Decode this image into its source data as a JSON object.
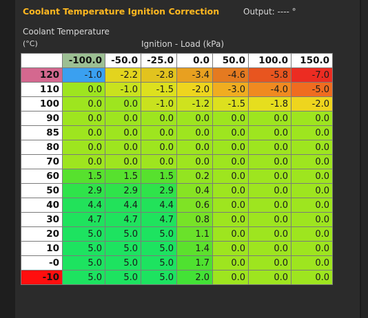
{
  "title": "Coolant Temperature Ignition Correction",
  "output_label": "Output: ---- °",
  "y_axis_label": "Coolant Temperature",
  "y_axis_unit": "(°C)",
  "x_axis_label": "Ignition - Load (kPa)",
  "columns": [
    "-100.0",
    "-50.0",
    "-25.0",
    "0.0",
    "50.0",
    "100.0",
    "150.0"
  ],
  "rows": [
    {
      "label": "120",
      "values": [
        "-1.0",
        "-2.2",
        "-2.8",
        "-3.4",
        "-4.6",
        "-5.8",
        "-7.0"
      ],
      "colors": [
        "#3aa0f0",
        "#e3d41e",
        "#e2c31e",
        "#e8a020",
        "#e57a20",
        "#e8551f",
        "#ec2c22"
      ]
    },
    {
      "label": "110",
      "values": [
        "0.0",
        "-1.0",
        "-1.5",
        "-2.0",
        "-3.0",
        "-4.0",
        "-5.0"
      ],
      "colors": [
        "#9ee51f",
        "#c9e21e",
        "#dde01e",
        "#eed51e",
        "#f0ad20",
        "#f08a20",
        "#ef6c20"
      ]
    },
    {
      "label": "100",
      "values": [
        "0.0",
        "0.0",
        "-1.0",
        "-1.2",
        "-1.5",
        "-1.8",
        "-2.0"
      ],
      "colors": [
        "#9ee51f",
        "#9ee51f",
        "#c9e21e",
        "#cfe21e",
        "#dde01e",
        "#e6de1e",
        "#eed51e"
      ]
    },
    {
      "label": "90",
      "values": [
        "0.0",
        "0.0",
        "0.0",
        "0.0",
        "0.0",
        "0.0",
        "0.0"
      ],
      "colors": [
        "#9ee51f",
        "#9ee51f",
        "#9ee51f",
        "#9ee51f",
        "#9ee51f",
        "#9ee51f",
        "#9ee51f"
      ]
    },
    {
      "label": "85",
      "values": [
        "0.0",
        "0.0",
        "0.0",
        "0.0",
        "0.0",
        "0.0",
        "0.0"
      ],
      "colors": [
        "#9ee51f",
        "#9ee51f",
        "#9ee51f",
        "#9ee51f",
        "#9ee51f",
        "#9ee51f",
        "#9ee51f"
      ]
    },
    {
      "label": "80",
      "values": [
        "0.0",
        "0.0",
        "0.0",
        "0.0",
        "0.0",
        "0.0",
        "0.0"
      ],
      "colors": [
        "#9ee51f",
        "#9ee51f",
        "#9ee51f",
        "#9ee51f",
        "#9ee51f",
        "#9ee51f",
        "#9ee51f"
      ]
    },
    {
      "label": "70",
      "values": [
        "0.0",
        "0.0",
        "0.0",
        "0.0",
        "0.0",
        "0.0",
        "0.0"
      ],
      "colors": [
        "#9ee51f",
        "#9ee51f",
        "#9ee51f",
        "#9ee51f",
        "#9ee51f",
        "#9ee51f",
        "#9ee51f"
      ]
    },
    {
      "label": "60",
      "values": [
        "1.5",
        "1.5",
        "1.5",
        "0.2",
        "0.0",
        "0.0",
        "0.0"
      ],
      "colors": [
        "#57e12e",
        "#57e12e",
        "#57e12e",
        "#93e421",
        "#9ee51f",
        "#9ee51f",
        "#9ee51f"
      ]
    },
    {
      "label": "50",
      "values": [
        "2.9",
        "2.9",
        "2.9",
        "0.4",
        "0.0",
        "0.0",
        "0.0"
      ],
      "colors": [
        "#2fe34a",
        "#2fe34a",
        "#2fe34a",
        "#87e323",
        "#9ee51f",
        "#9ee51f",
        "#9ee51f"
      ]
    },
    {
      "label": "40",
      "values": [
        "4.4",
        "4.4",
        "4.4",
        "0.6",
        "0.0",
        "0.0",
        "0.0"
      ],
      "colors": [
        "#22e25a",
        "#22e25a",
        "#22e25a",
        "#7fe325",
        "#9ee51f",
        "#9ee51f",
        "#9ee51f"
      ]
    },
    {
      "label": "30",
      "values": [
        "4.7",
        "4.7",
        "4.7",
        "0.8",
        "0.0",
        "0.0",
        "0.0"
      ],
      "colors": [
        "#1fe35d",
        "#1fe35d",
        "#1fe35d",
        "#77e327",
        "#9ee51f",
        "#9ee51f",
        "#9ee51f"
      ]
    },
    {
      "label": "20",
      "values": [
        "5.0",
        "5.0",
        "5.0",
        "1.1",
        "0.0",
        "0.0",
        "0.0"
      ],
      "colors": [
        "#1de360",
        "#1de360",
        "#1de360",
        "#6ae22a",
        "#9ee51f",
        "#9ee51f",
        "#9ee51f"
      ]
    },
    {
      "label": "10",
      "values": [
        "5.0",
        "5.0",
        "5.0",
        "1.4",
        "0.0",
        "0.0",
        "0.0"
      ],
      "colors": [
        "#1de360",
        "#1de360",
        "#1de360",
        "#5ce12d",
        "#9ee51f",
        "#9ee51f",
        "#9ee51f"
      ]
    },
    {
      "label": "-0",
      "values": [
        "5.0",
        "5.0",
        "5.0",
        "1.7",
        "0.0",
        "0.0",
        "0.0"
      ],
      "colors": [
        "#1de360",
        "#1de360",
        "#1de360",
        "#4fe130",
        "#9ee51f",
        "#9ee51f",
        "#9ee51f"
      ]
    },
    {
      "label": "-10",
      "values": [
        "5.0",
        "5.0",
        "5.0",
        "2.0",
        "0.0",
        "0.0",
        "0.0"
      ],
      "colors": [
        "#1de360",
        "#1de360",
        "#1de360",
        "#43e236",
        "#9ee51f",
        "#9ee51f",
        "#9ee51f"
      ]
    }
  ]
}
